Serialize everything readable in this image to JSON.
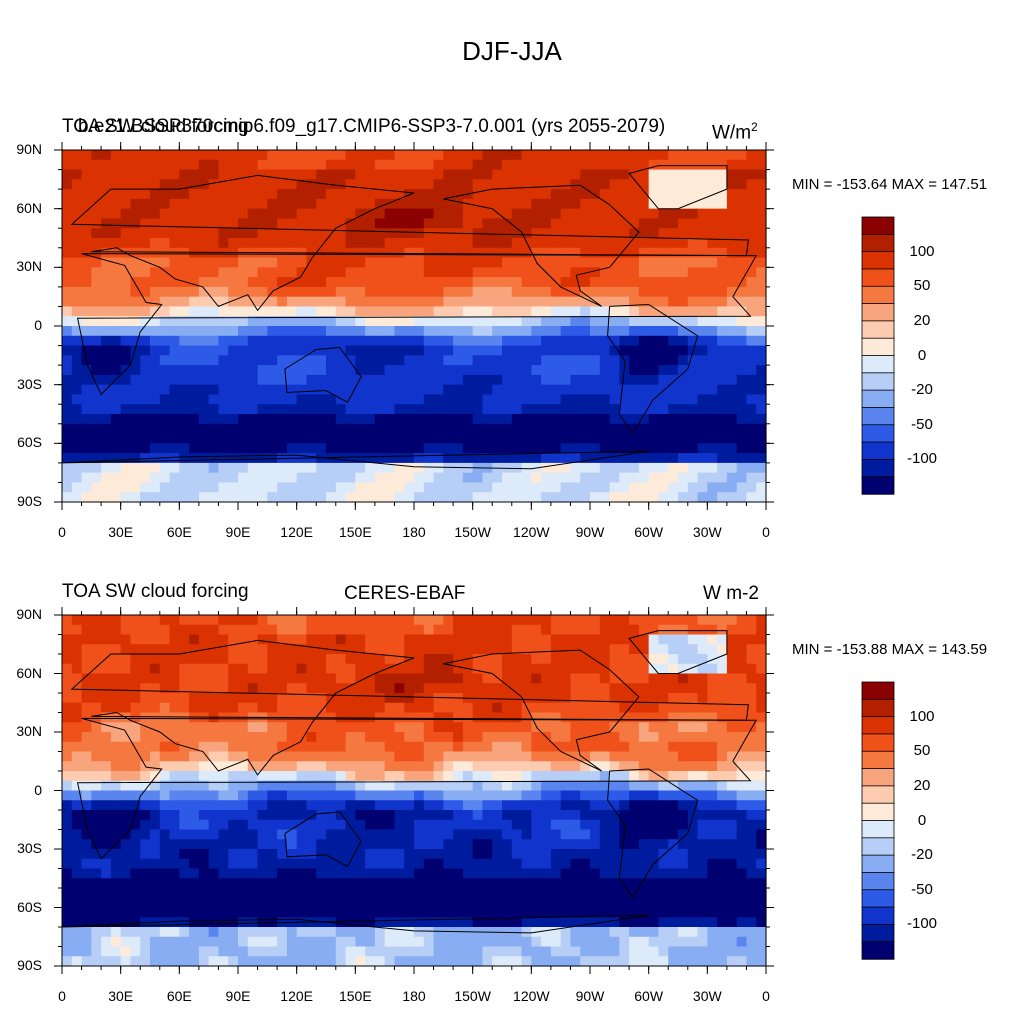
{
  "figure": {
    "title": "DJF-JJA"
  },
  "lat_ticks": [
    "90N",
    "60N",
    "30N",
    "0",
    "30S",
    "60S",
    "90S"
  ],
  "lon_ticks": [
    "0",
    "30E",
    "60E",
    "90E",
    "120E",
    "150E",
    "180",
    "150W",
    "120W",
    "90W",
    "60W",
    "30W",
    "0"
  ],
  "panels": [
    {
      "id": "top",
      "left_title": "TOA SW cloud forcing",
      "center_title": "b.e21.BSSP370cmip6.f09_g17.CMIP6-SSP3-7.0.001 (yrs 2055-2079)",
      "units": "W/m",
      "units_superscript": "2",
      "stats": "MIN = -153.64 MAX = 147.51",
      "colorbar_labels": [
        "100",
        "50",
        "20",
        "0",
        "-20",
        "-50",
        "-100"
      ]
    },
    {
      "id": "bottom",
      "left_title": "TOA SW cloud forcing",
      "center_title": "CERES-EBAF",
      "units": "W m-2",
      "stats": "MIN = -153.88 MAX = 143.59",
      "colorbar_labels": [
        "100",
        "50",
        "20",
        "0",
        "-20",
        "-50",
        "-100"
      ]
    }
  ],
  "colors": {
    "palette": [
      "#8B0000",
      "#B22000",
      "#DA3200",
      "#F0501A",
      "#F47840",
      "#F8A47C",
      "#FCCBB0",
      "#FEEAD8",
      "#DCEAFA",
      "#B7CEF6",
      "#88ADF2",
      "#5A84EE",
      "#2E5AE8",
      "#1034CC",
      "#001C9E",
      "#000070"
    ]
  }
}
